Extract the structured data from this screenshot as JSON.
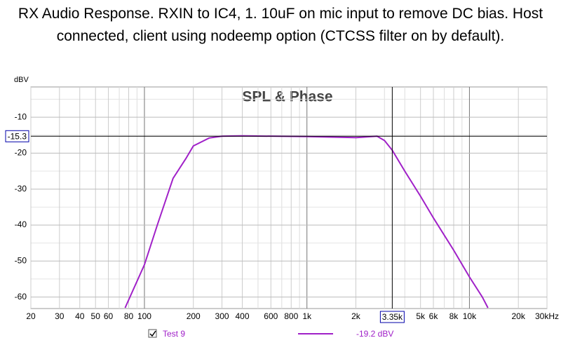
{
  "chart_data": {
    "type": "line",
    "title": "RX Audio Response. RXIN to IC4, 1. 10uF on mic input to remove DC bias. Host connected, client using nodeemp option (CTCSS filter on by default).",
    "plot_title": "SPL & Phase",
    "y_label": "dBV",
    "x_log": true,
    "grid": true,
    "xlim": [
      20,
      30000
    ],
    "ylim": [
      -63.2,
      -1.6
    ],
    "xticks": [
      20,
      30,
      40,
      50,
      60,
      80,
      100,
      200,
      300,
      400,
      600,
      800,
      {
        "value": 1000,
        "label": "1k"
      },
      {
        "value": 2000,
        "label": "2k"
      },
      {
        "value": 5000,
        "label": "5k"
      },
      {
        "value": 6000,
        "label": "6k"
      },
      {
        "value": 8000,
        "label": "8k"
      },
      {
        "value": 10000,
        "label": "10k"
      },
      {
        "value": 20000,
        "label": "20k"
      },
      {
        "value": 30000,
        "label": "30kHz"
      }
    ],
    "x_minor_grid": [
      70,
      90,
      500,
      700,
      900,
      3000,
      4000,
      7000,
      9000
    ],
    "yticks": [
      -10,
      -20,
      -30,
      -40,
      -50,
      -60
    ],
    "y_minor_grid": [
      -5,
      -15,
      -25,
      -35,
      -45,
      -55
    ],
    "x": [
      76,
      100,
      120,
      150,
      180,
      200,
      250,
      300,
      400,
      1000,
      2000,
      2700,
      3000,
      3350,
      4000,
      5000,
      6000,
      8000,
      10000,
      12000,
      13000
    ],
    "series": [
      {
        "name": "Test 9",
        "color": "#a020c8",
        "values": [
          -63,
          -51,
          -40,
          -27,
          -21.5,
          -18,
          -15.8,
          -15.3,
          -15.2,
          -15.4,
          -15.7,
          -15.3,
          -16.5,
          -19.2,
          -25,
          -32,
          -38,
          -47,
          -54.4,
          -60,
          -63
        ]
      }
    ],
    "legend_value": "-19.2 dBV",
    "cursor": {
      "x": {
        "value": 3350,
        "label": "3.35k"
      },
      "y": -15.3
    }
  }
}
